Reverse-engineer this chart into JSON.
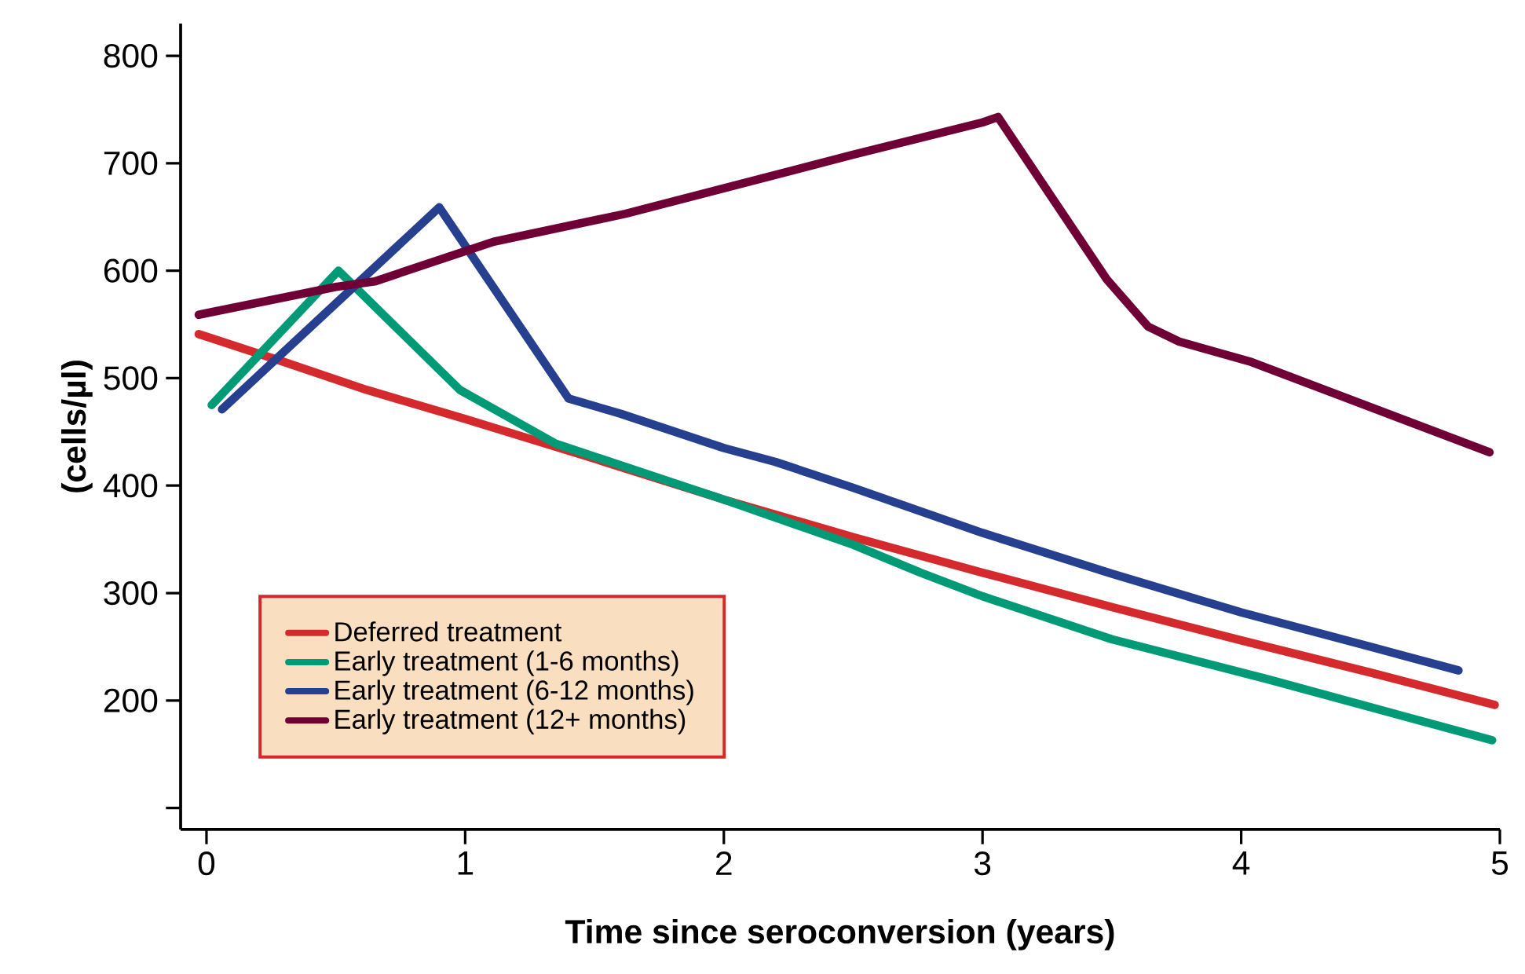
{
  "chart_data": {
    "type": "line",
    "xlabel": "Time since seroconversion (years)",
    "ylabel": "(cells/µl)",
    "xlim": [
      -0.1,
      5
    ],
    "ylim": [
      80,
      830
    ],
    "xticks": [
      0,
      1,
      2,
      3,
      4,
      5
    ],
    "yticks": [
      {
        "value": 100,
        "label": null
      },
      200,
      300,
      400,
      500,
      600,
      700,
      800
    ],
    "legend": "bottom left",
    "series": [
      {
        "name": "Deferred treatment",
        "color": "#d42a2e",
        "x": [
          -0.03,
          0.3,
          0.62,
          1,
          1.5,
          2,
          2.5,
          3,
          3.5,
          4,
          4.5,
          4.98
        ],
        "values": [
          541,
          515,
          489,
          462,
          425,
          387,
          352,
          319,
          287,
          256,
          226,
          196
        ]
      },
      {
        "name": "Early treatment (1-6 months)",
        "color": "#009a77",
        "x": [
          0.02,
          0.51,
          0.98,
          1.35,
          2,
          2.5,
          2.76,
          3,
          3.5,
          4.1,
          4.97
        ],
        "values": [
          475,
          600,
          489,
          439,
          387,
          345,
          319,
          297,
          257,
          220,
          163
        ]
      },
      {
        "name": "Early treatment (6-12 months)",
        "color": "#263f8f",
        "x": [
          0.06,
          0.9,
          1.4,
          1.6,
          2,
          2.2,
          2.5,
          3,
          3.5,
          4,
          4.5,
          4.84
        ],
        "values": [
          471,
          659,
          481,
          467,
          435,
          422,
          398,
          356,
          318,
          282,
          250,
          228
        ]
      },
      {
        "name": "Early treatment (12+ months)",
        "color": "#6e0036",
        "x": [
          -0.03,
          0.5,
          0.65,
          1.11,
          1.62,
          2.5,
          3.0,
          3.06,
          3.48,
          3.64,
          3.76,
          4.04,
          4.96
        ],
        "values": [
          559,
          585,
          590,
          627,
          653,
          708,
          738,
          743,
          592,
          548,
          534,
          515,
          431
        ]
      }
    ]
  }
}
